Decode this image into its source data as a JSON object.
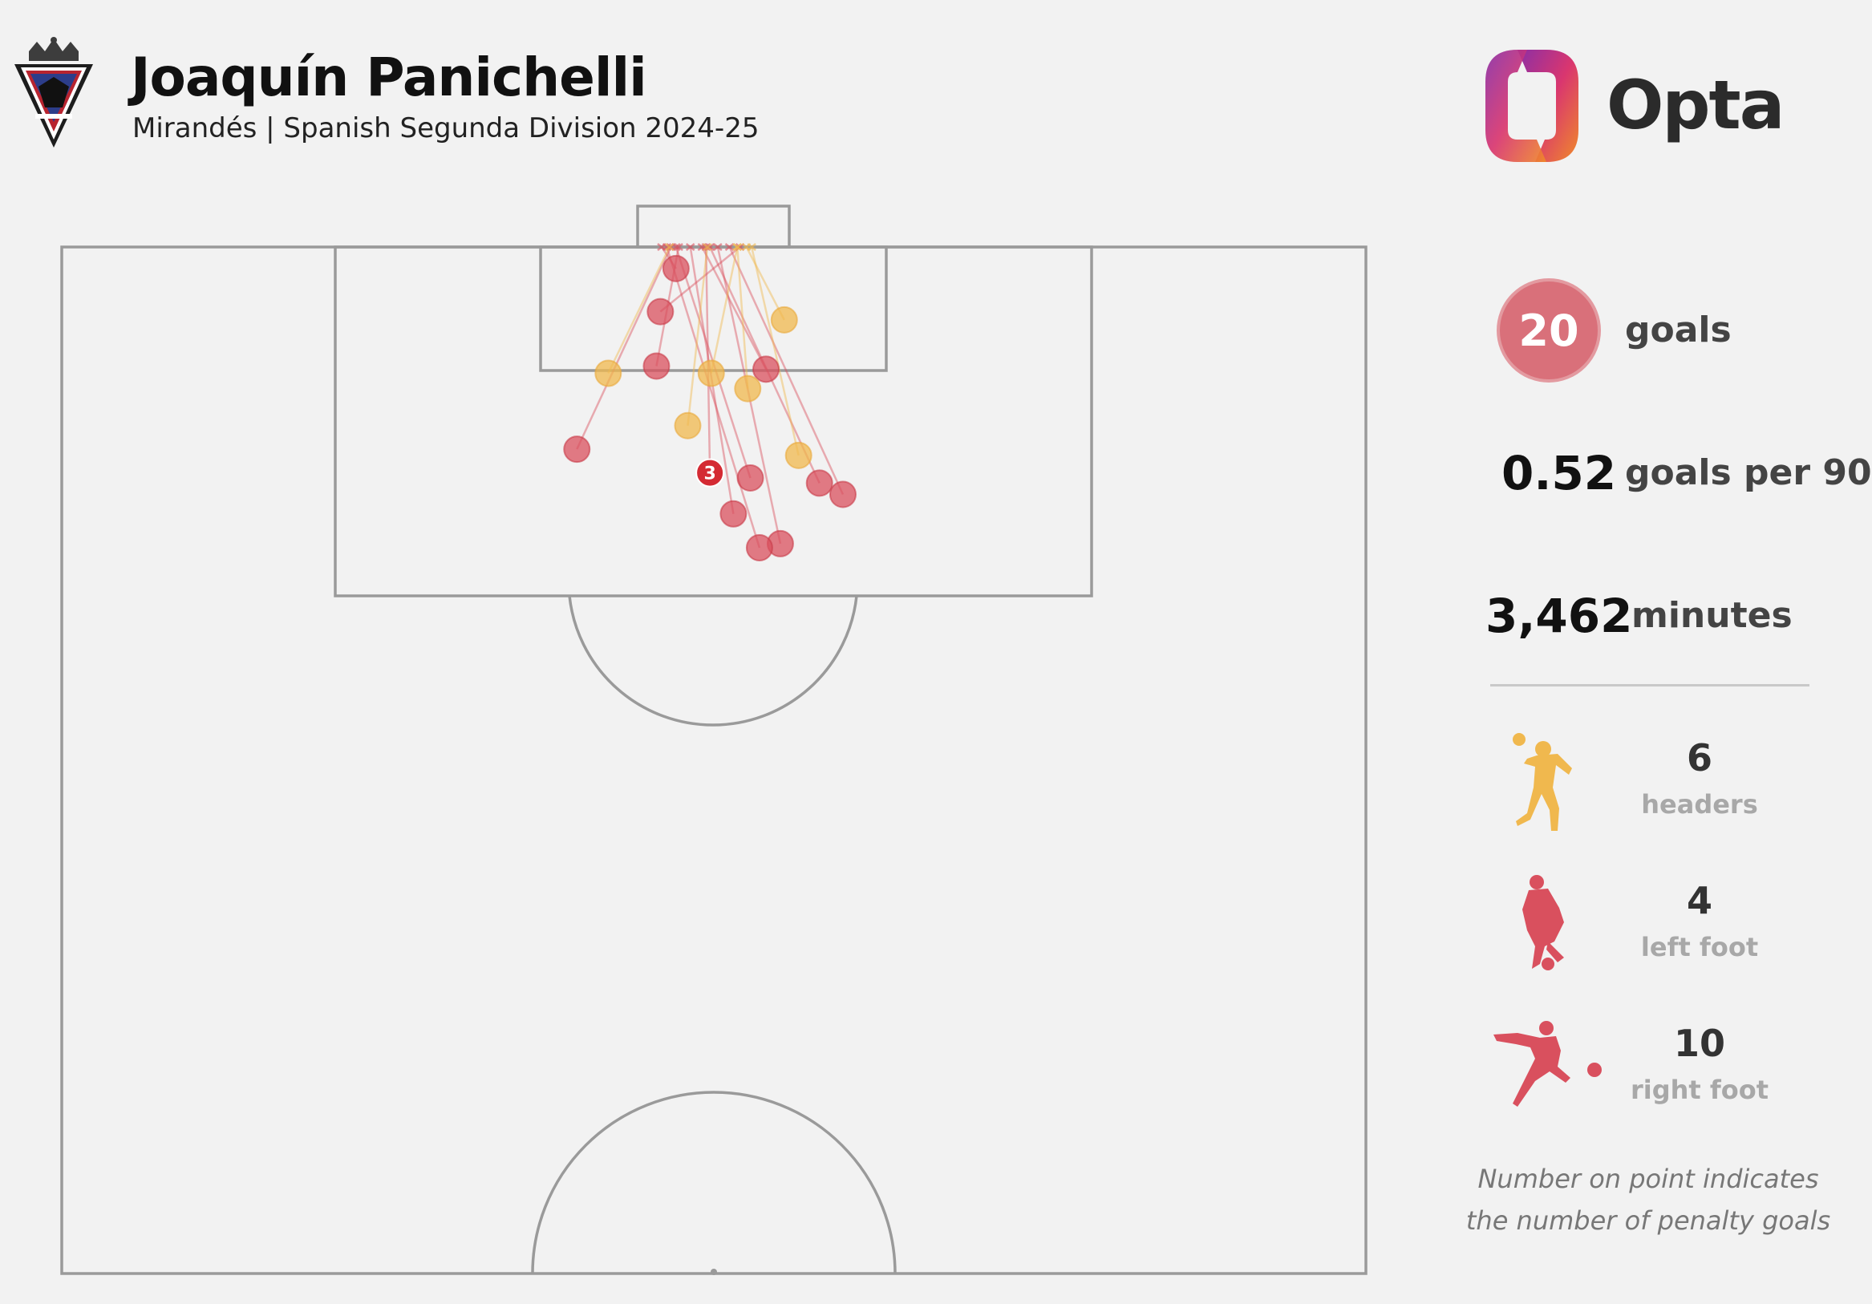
{
  "header": {
    "title": "Joaquín Panichelli",
    "subtitle": "Mirandés | Spanish Segunda Division 2024-25",
    "brand": "Opta"
  },
  "colors": {
    "header_shot": "#f0b84e",
    "foot_shot": "#d9505e",
    "penalty_marker": "#d42a33",
    "pitch_lines": "#9a9a9a",
    "background": "#f2f2f2"
  },
  "stats": {
    "goals": "20",
    "goals_label": "goals",
    "per90": "0.52",
    "per90_label": "goals per 90",
    "minutes": "3,462",
    "minutes_label": "minutes"
  },
  "body_types": [
    {
      "key": "headers",
      "count": "6",
      "label": "headers",
      "icon": "header-player-icon",
      "color": "#f0b84e"
    },
    {
      "key": "left_foot",
      "count": "4",
      "label": "left foot",
      "icon": "left-foot-player-icon",
      "color": "#d9505e"
    },
    {
      "key": "right_foot",
      "count": "10",
      "label": "right foot",
      "icon": "right-foot-player-icon",
      "color": "#d9505e"
    }
  ],
  "note": {
    "line1": "Number on point indicates",
    "line2": "the number of penalty goals"
  },
  "chart_data": {
    "type": "scatter",
    "description_units": "pitch coordinates: x = 0 (left touchline) to 100 (right touchline); y = 0 (goal line) to 100 (halfway line)",
    "goals": [
      {
        "x": 47.1,
        "y": 2.1,
        "end_x": 46.0,
        "end_y": 0,
        "body": "foot",
        "count": 1
      },
      {
        "x": 45.9,
        "y": 6.3,
        "end_x": 52.0,
        "end_y": 0,
        "body": "foot",
        "count": 1
      },
      {
        "x": 45.6,
        "y": 11.6,
        "end_x": 47.3,
        "end_y": 0,
        "body": "foot",
        "count": 1
      },
      {
        "x": 54.0,
        "y": 11.9,
        "end_x": 49.1,
        "end_y": 0,
        "body": "foot",
        "count": 1
      },
      {
        "x": 39.5,
        "y": 19.7,
        "end_x": 46.7,
        "end_y": 0,
        "body": "foot",
        "count": 1
      },
      {
        "x": 49.7,
        "y": 22.0,
        "end_x": 49.4,
        "end_y": 0,
        "body": "foot",
        "count": 3
      },
      {
        "x": 52.8,
        "y": 22.5,
        "end_x": 47.1,
        "end_y": 0,
        "body": "foot",
        "count": 1
      },
      {
        "x": 58.1,
        "y": 23.0,
        "end_x": 49.7,
        "end_y": 0,
        "body": "foot",
        "count": 1
      },
      {
        "x": 59.9,
        "y": 24.1,
        "end_x": 51.2,
        "end_y": 0,
        "body": "foot",
        "count": 1
      },
      {
        "x": 51.5,
        "y": 26.0,
        "end_x": 48.2,
        "end_y": 0,
        "body": "foot",
        "count": 1
      },
      {
        "x": 55.1,
        "y": 28.9,
        "end_x": 50.3,
        "end_y": 0,
        "body": "foot",
        "count": 1
      },
      {
        "x": 53.5,
        "y": 29.3,
        "end_x": 46.4,
        "end_y": 0,
        "body": "foot",
        "count": 1
      },
      {
        "x": 55.4,
        "y": 7.1,
        "end_x": 52.5,
        "end_y": 0,
        "body": "head",
        "count": 1
      },
      {
        "x": 41.9,
        "y": 12.3,
        "end_x": 46.6,
        "end_y": 0,
        "body": "head",
        "count": 1
      },
      {
        "x": 49.8,
        "y": 12.3,
        "end_x": 51.8,
        "end_y": 0,
        "body": "head",
        "count": 1
      },
      {
        "x": 52.6,
        "y": 13.8,
        "end_x": 51.8,
        "end_y": 0,
        "body": "head",
        "count": 1
      },
      {
        "x": 48.0,
        "y": 17.4,
        "end_x": 49.5,
        "end_y": 0,
        "body": "head",
        "count": 1
      },
      {
        "x": 56.5,
        "y": 20.3,
        "end_x": 52.9,
        "end_y": 0,
        "body": "head",
        "count": 1
      }
    ],
    "penalty_label": "3"
  }
}
